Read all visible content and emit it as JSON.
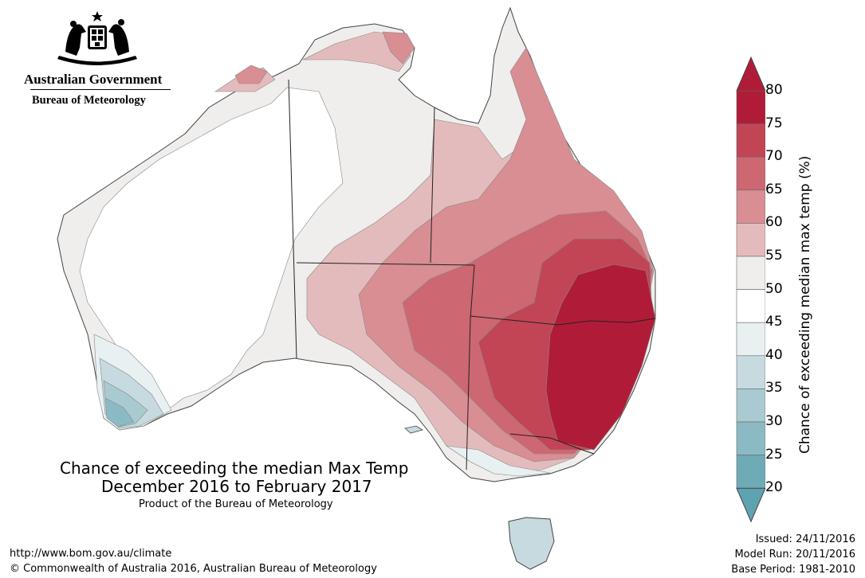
{
  "agency": {
    "government_name": "Australian Government",
    "bureau_name": "Bureau of Meteorology"
  },
  "map": {
    "title_line1": "Chance of exceeding the median Max Temp",
    "title_line2": "December 2016 to February 2017",
    "subtitle": "Product of the Bureau of Meteorology",
    "url": "http://www.bom.gov.au/climate",
    "copyright": "© Commonwealth of Australia 2016, Australian Bureau of Meteorology",
    "issued": "Issued: 24/11/2016",
    "model_run": "Model Run: 20/11/2016",
    "base_period": "Base Period: 1981-2010"
  },
  "colorbar": {
    "label": "Chance of exceeding median max temp (%)",
    "ticks": [
      "80",
      "75",
      "70",
      "65",
      "60",
      "55",
      "50",
      "45",
      "40",
      "35",
      "30",
      "25",
      "20"
    ],
    "colors": [
      "#b01c37",
      "#c24555",
      "#cd6771",
      "#d88e93",
      "#e4bbbd",
      "#efeeec",
      "#ffffff",
      "#e8f0f2",
      "#c6dadf",
      "#a9cad1",
      "#8bbac4",
      "#6fabb7"
    ],
    "over_color": "#b01c37",
    "under_color": "#5ea3b1"
  }
}
